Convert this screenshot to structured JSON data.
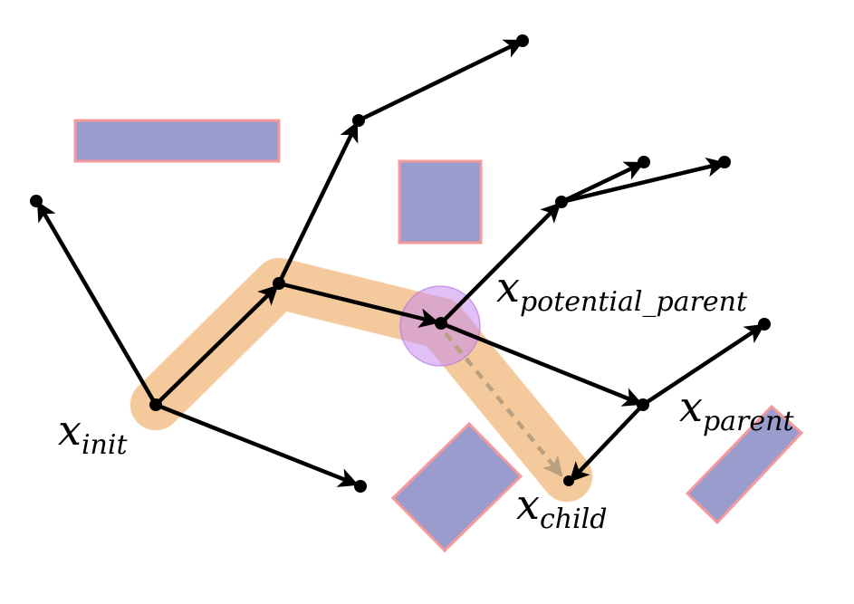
{
  "colors": {
    "obstacle_fill": "#9a9ccd",
    "obstacle_stroke": "#f59a9c",
    "highlight_path": "#f5b875",
    "neighborhood_circle": "#c78cf0",
    "edge": "#000000",
    "rewire_dashed": "#b8a080"
  },
  "labels": {
    "init": {
      "base": "x",
      "sub": "init"
    },
    "potential_parent": {
      "base": "x",
      "sub": "potential_parent"
    },
    "parent": {
      "base": "x",
      "sub": "parent"
    },
    "child": {
      "base": "x",
      "sub": "child"
    }
  }
}
